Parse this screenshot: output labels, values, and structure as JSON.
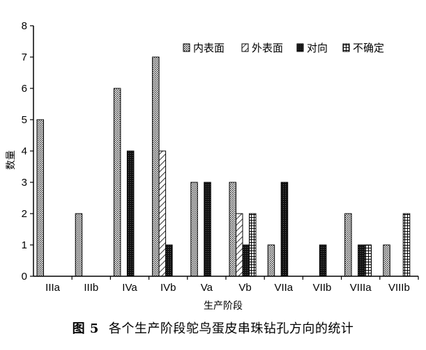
{
  "chart_data": {
    "type": "bar",
    "xlabel": "生产阶段",
    "ylabel": "数量",
    "ylim": [
      0,
      8
    ],
    "yticks": [
      "0",
      "1",
      "2",
      "3",
      "4",
      "5",
      "6",
      "7",
      "8"
    ],
    "categories": [
      "IIIa",
      "IIIb",
      "IVa",
      "IVb",
      "Va",
      "Vb",
      "VIIa",
      "VIIb",
      "VIIIa",
      "VIIIb"
    ],
    "series": [
      {
        "name": "内表面",
        "values": [
          5,
          2,
          6,
          7,
          3,
          3,
          1,
          0,
          2,
          1
        ]
      },
      {
        "name": "外表面",
        "values": [
          0,
          0,
          0,
          4,
          0,
          2,
          0,
          0,
          0,
          0
        ]
      },
      {
        "name": "对向",
        "values": [
          0,
          0,
          4,
          1,
          3,
          1,
          3,
          1,
          1,
          0
        ]
      },
      {
        "name": "不确定",
        "values": [
          0,
          0,
          0,
          0,
          0,
          2,
          0,
          0,
          1,
          2
        ]
      }
    ],
    "legend_position": "top-right",
    "grid": false
  },
  "caption": {
    "label": "图 5",
    "text": "各个生产阶段鸵鸟蛋皮串珠钻孔方向的统计"
  }
}
